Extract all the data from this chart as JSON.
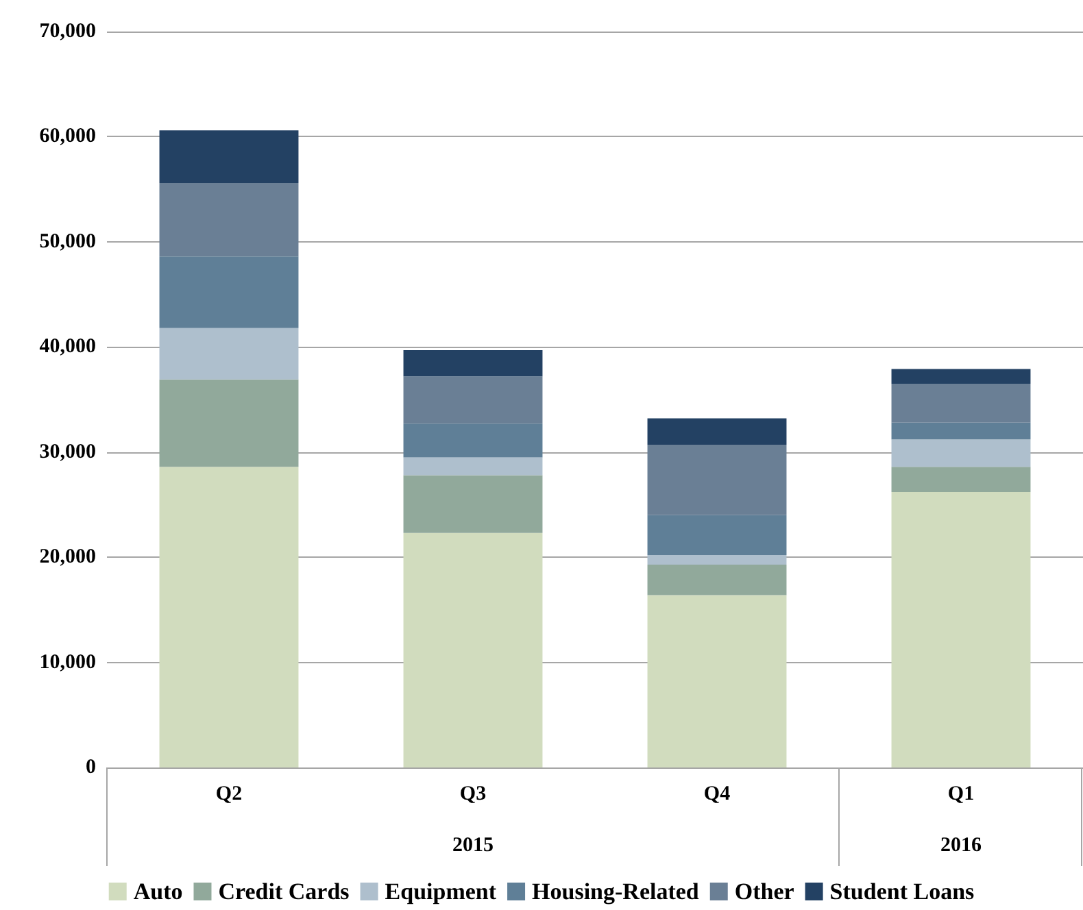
{
  "chart_data": {
    "type": "bar",
    "stacked": true,
    "categories": [
      "Q2",
      "Q3",
      "Q4",
      "Q1"
    ],
    "series": [
      {
        "name": "Auto",
        "color": "#d1dcbe",
        "values": [
          28600,
          22300,
          16400,
          26200
        ]
      },
      {
        "name": "Credit Cards",
        "color": "#91a99b",
        "values": [
          8300,
          5500,
          2900,
          2400
        ]
      },
      {
        "name": "Equipment",
        "color": "#aebfcd",
        "values": [
          4900,
          1700,
          900,
          2600
        ]
      },
      {
        "name": "Housing-Related",
        "color": "#5f7f97",
        "values": [
          6800,
          3200,
          3800,
          1600
        ]
      },
      {
        "name": "Other",
        "color": "#6a7f95",
        "values": [
          7000,
          4500,
          6700,
          3700
        ]
      },
      {
        "name": "Student Loans",
        "color": "#234163",
        "values": [
          5000,
          2500,
          2500,
          1400
        ]
      }
    ],
    "ylim": [
      0,
      70000
    ],
    "yticks": [
      0,
      {
        "value": 10000,
        "label": "10,000"
      },
      {
        "value": 20000,
        "label": "20,000"
      },
      {
        "value": 30000,
        "label": "30,000"
      },
      {
        "value": 40000,
        "label": "40,000"
      },
      {
        "value": 50000,
        "label": "50,000"
      },
      {
        "value": 60000,
        "label": "60,000"
      },
      {
        "value": 70000,
        "label": "70,000"
      }
    ],
    "grid": "y",
    "legend": "bottom",
    "annotations": [
      "2015",
      "2016"
    ]
  }
}
